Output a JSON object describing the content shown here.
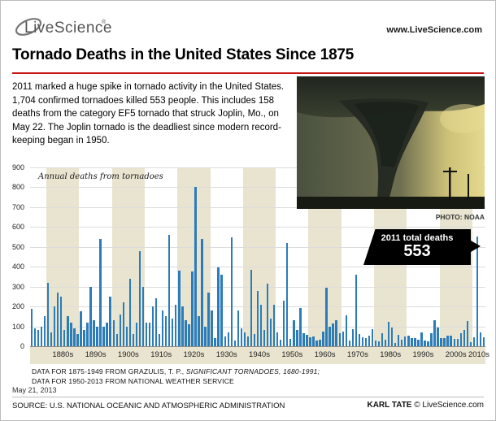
{
  "header": {
    "logo_text": "LiveScience",
    "logo_reg": "®",
    "url": "www.LiveScience.com"
  },
  "title": "Tornado Deaths in the United States Since 1875",
  "intro": "2011 marked a huge spike in tornado activity in the United States. 1,704 confirmed tornadoes killed 553 people. This includes 158 deaths from the category EF5 tornado that struck Joplin, Mo., on May 22. The Joplin tornado is the deadliest since modern record-keeping began in 1950.",
  "photo": {
    "credit": "PHOTO: NOAA"
  },
  "callout": {
    "label": "2011 total deaths",
    "value": "553"
  },
  "chart_data": {
    "type": "bar",
    "annotation": "Annual deaths from tornadoes",
    "start_year": 1875,
    "end_year": 2013,
    "ylim": [
      0,
      900
    ],
    "ytick_step": 100,
    "grid": true,
    "bar_color": "#2b7cb9",
    "band_color": "#e9e4cf",
    "band_decades": [
      1880,
      1900,
      1920,
      1940,
      1960,
      1980,
      2000
    ],
    "decade_labels": [
      "1880s",
      "1890s",
      "1900s",
      "1910s",
      "1920s",
      "1930s",
      "1940s",
      "1950s",
      "1960s",
      "1970s",
      "1980s",
      "1990s",
      "2000s",
      "2010s"
    ],
    "values": [
      190,
      90,
      80,
      100,
      150,
      320,
      70,
      200,
      270,
      250,
      80,
      150,
      120,
      90,
      60,
      175,
      80,
      120,
      300,
      130,
      100,
      540,
      100,
      120,
      250,
      130,
      60,
      160,
      220,
      100,
      340,
      60,
      120,
      480,
      300,
      120,
      120,
      200,
      240,
      60,
      180,
      150,
      560,
      140,
      210,
      380,
      200,
      130,
      110,
      375,
      800,
      150,
      540,
      100,
      270,
      180,
      40,
      395,
      360,
      50,
      70,
      550,
      30,
      180,
      90,
      70,
      50,
      385,
      60,
      280,
      210,
      80,
      315,
      140,
      210,
      70,
      34,
      230,
      519,
      36,
      129,
      83,
      193,
      67,
      58,
      46,
      51,
      28,
      31,
      73,
      296,
      98,
      114,
      131,
      66,
      72,
      156,
      27,
      87,
      361,
      60,
      44,
      43,
      53,
      84,
      28,
      24,
      64,
      34,
      122,
      94,
      15,
      59,
      32,
      50,
      53,
      39,
      39,
      33,
      69,
      30,
      25,
      67,
      130,
      94,
      40,
      40,
      55,
      54,
      35,
      38,
      67,
      81,
      126,
      21,
      45,
      553,
      70,
      47
    ],
    "highlight": {
      "year": 2011,
      "value": 553
    }
  },
  "notes": {
    "line1a": "DATA FOR 1875-1949 FROM GRAZULIS, T. P., ",
    "line1b": "SIGNIFICANT TORNADOES, 1680-1991;",
    "line2": "DATA FOR 1950-2013 FROM NATIONAL WEATHER SERVICE"
  },
  "footer": {
    "date": "May 21, 2013",
    "source": "SOURCE: U.S. NATIONAL OCEANIC AND ATMOSPHERIC ADMINISTRATION",
    "credit_name": "KARL TATE",
    "credit_rest": " © LiveScience.com"
  }
}
